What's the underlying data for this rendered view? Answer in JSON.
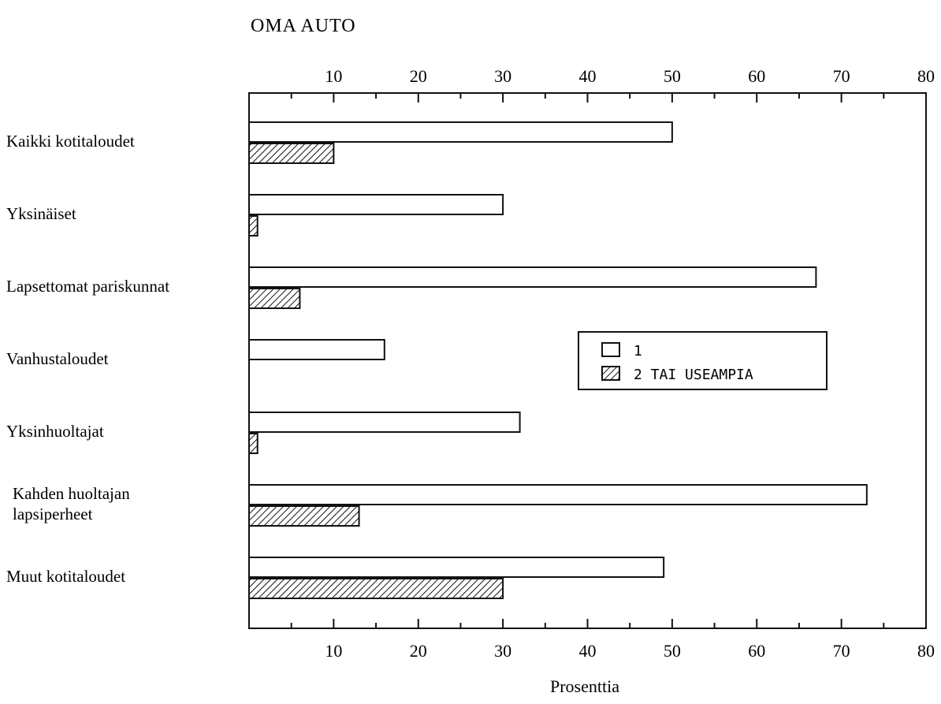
{
  "chart_data": {
    "type": "bar",
    "orientation": "horizontal",
    "title": "OMA  AUTO",
    "xlabel": "Prosenttia",
    "ylabel": "",
    "xlim": [
      0,
      80
    ],
    "xticks": [
      10,
      20,
      30,
      40,
      50,
      60,
      70,
      80
    ],
    "tick_labels_top_and_bottom": true,
    "grid": false,
    "legend_position": "center-right",
    "categories": [
      [
        "Kaikki kotitaloudet"
      ],
      [
        "Yksinäiset"
      ],
      [
        "Lapsettomat pariskunnat"
      ],
      [
        "Vanhustaloudet"
      ],
      [
        "Yksinhuoltajat"
      ],
      [
        "Kahden huoltajan",
        "lapsiperheet"
      ],
      [
        "Muut kotitaloudet"
      ]
    ],
    "series": [
      {
        "name": "1",
        "pattern": "solid-white",
        "values": [
          50,
          30,
          67,
          16,
          32,
          73,
          49
        ]
      },
      {
        "name": "2 TAI USEAMPIA",
        "pattern": "hatched",
        "values": [
          10,
          1,
          6,
          0,
          1,
          13,
          30
        ]
      }
    ]
  }
}
